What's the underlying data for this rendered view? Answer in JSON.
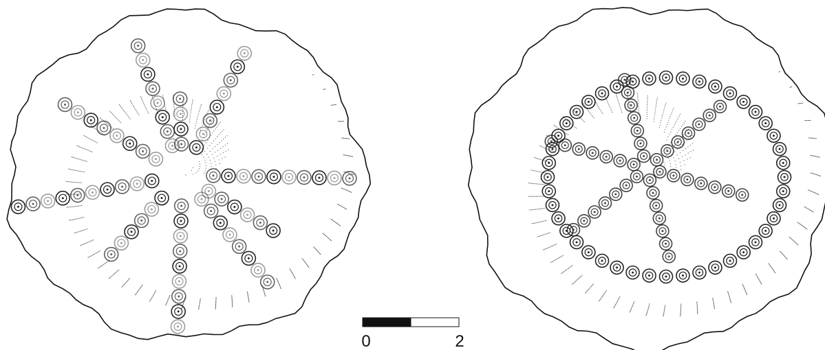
{
  "scale_bar": {
    "labels": [
      "0",
      "2"
    ]
  }
}
